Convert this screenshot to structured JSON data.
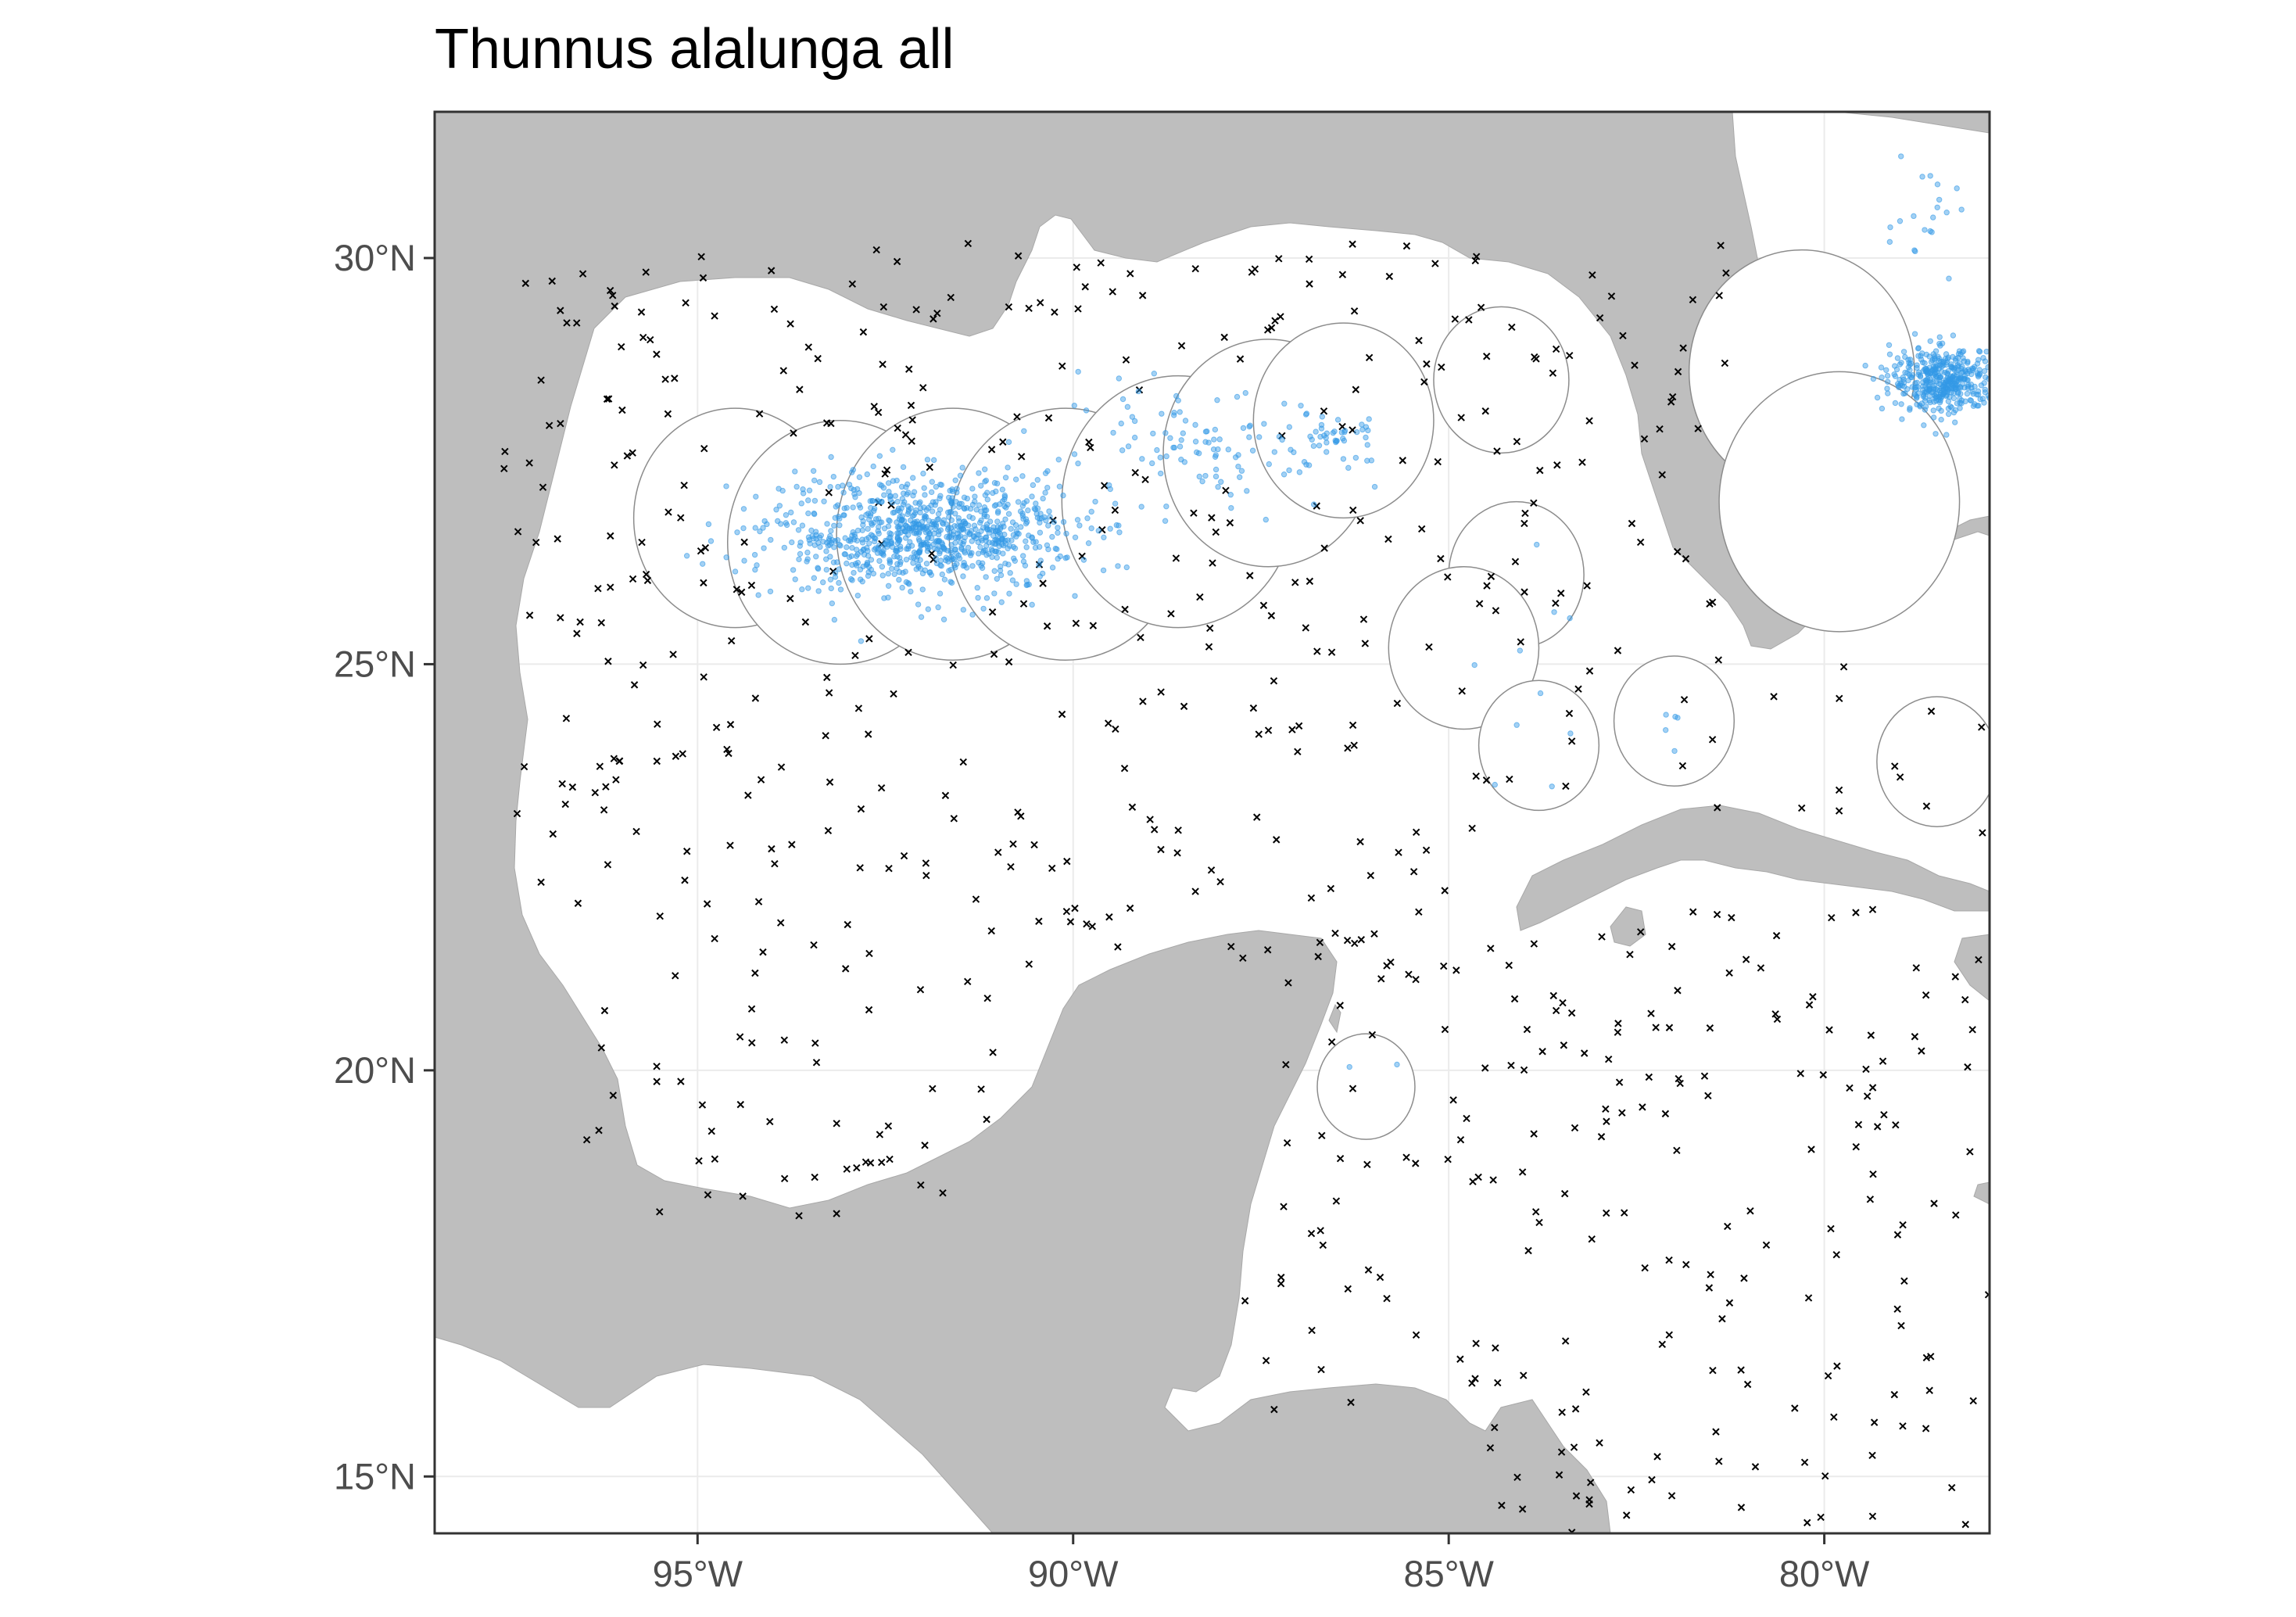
{
  "title": "Thunnus alalunga all",
  "map": {
    "xlim": [
      -98.5,
      -77.8
    ],
    "ylim": [
      14.3,
      31.8
    ],
    "x_ticks": [
      {
        "value": -95,
        "label": "95°W"
      },
      {
        "value": -90,
        "label": "90°W"
      },
      {
        "value": -85,
        "label": "85°W"
      },
      {
        "value": -80,
        "label": "80°W"
      }
    ],
    "y_ticks": [
      {
        "value": 15,
        "label": "15°N"
      },
      {
        "value": 20,
        "label": "20°N"
      },
      {
        "value": 25,
        "label": "25°N"
      },
      {
        "value": 30,
        "label": "30°N"
      }
    ],
    "grid": true,
    "colors": {
      "land": "#bebebe",
      "water": "#ffffff",
      "presence": "#3399e6",
      "absence": "#000000",
      "buffer_outline": "#8c8c8c",
      "grid": "#ebebeb",
      "frame": "#333333"
    },
    "buffer_circles": [
      {
        "lon": -94.5,
        "lat": 26.8,
        "r": 1.35
      },
      {
        "lon": -93.1,
        "lat": 26.5,
        "r": 1.5
      },
      {
        "lon": -91.6,
        "lat": 26.6,
        "r": 1.55
      },
      {
        "lon": -90.1,
        "lat": 26.6,
        "r": 1.55
      },
      {
        "lon": -88.6,
        "lat": 27.0,
        "r": 1.55
      },
      {
        "lon": -87.4,
        "lat": 27.6,
        "r": 1.4
      },
      {
        "lon": -86.4,
        "lat": 28.0,
        "r": 1.2
      },
      {
        "lon": -84.3,
        "lat": 28.5,
        "r": 0.9
      },
      {
        "lon": -84.1,
        "lat": 26.1,
        "r": 0.9
      },
      {
        "lon": -84.8,
        "lat": 25.2,
        "r": 1.0
      },
      {
        "lon": -83.8,
        "lat": 24.0,
        "r": 0.8
      },
      {
        "lon": -82.0,
        "lat": 24.3,
        "r": 0.8
      },
      {
        "lon": -80.3,
        "lat": 28.6,
        "r": 1.5
      },
      {
        "lon": -79.8,
        "lat": 27.0,
        "r": 1.6
      },
      {
        "lon": -78.5,
        "lat": 23.8,
        "r": 0.8
      },
      {
        "lon": -86.1,
        "lat": 19.8,
        "r": 0.65
      }
    ],
    "presence_clusters": [
      {
        "lon": -92.0,
        "lat": 26.6,
        "sd_lon": 1.0,
        "sd_lat": 0.35,
        "n": 900
      },
      {
        "lon": -88.3,
        "lat": 27.6,
        "sd_lon": 1.1,
        "sd_lat": 0.35,
        "n": 120
      },
      {
        "lon": -86.5,
        "lat": 27.8,
        "sd_lon": 0.25,
        "sd_lat": 0.1,
        "n": 30
      },
      {
        "lon": -78.4,
        "lat": 28.5,
        "sd_lon": 0.35,
        "sd_lat": 0.2,
        "n": 420
      },
      {
        "lon": -78.6,
        "lat": 30.5,
        "sd_lon": 0.35,
        "sd_lat": 0.4,
        "n": 20
      },
      {
        "lon": -84.0,
        "lat": 25.1,
        "sd_lon": 0.4,
        "sd_lat": 0.8,
        "n": 10
      },
      {
        "lon": -82.0,
        "lat": 24.3,
        "sd_lon": 0.15,
        "sd_lat": 0.15,
        "n": 5
      },
      {
        "lon": -86.1,
        "lat": 20.0,
        "sd_lon": 0.2,
        "sd_lat": 0.2,
        "n": 2
      }
    ],
    "absence_count": 700
  }
}
